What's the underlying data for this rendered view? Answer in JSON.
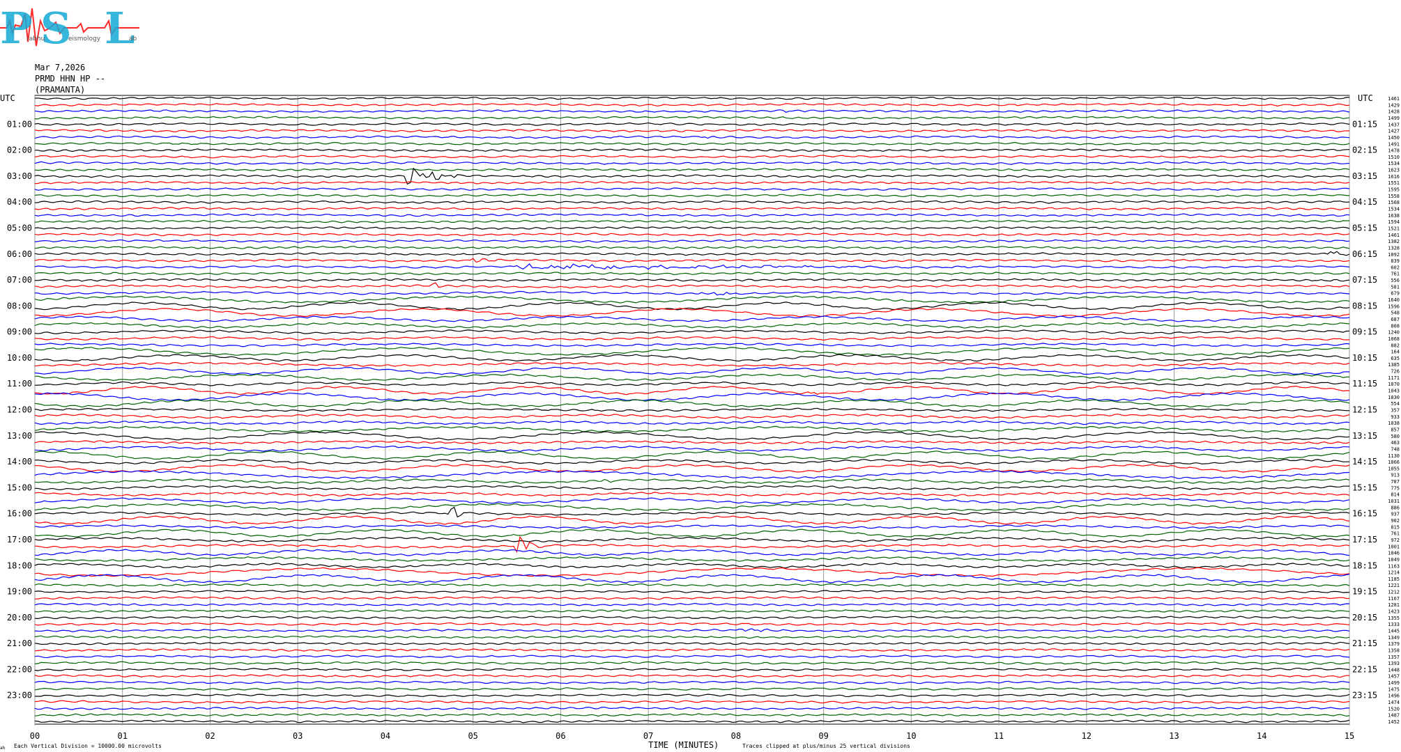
{
  "logo": {
    "letters": [
      "P",
      "S",
      "L"
    ],
    "small_text": [
      "rabhu",
      "eismology",
      "ab"
    ]
  },
  "header": {
    "date": "Mar 7,2026",
    "station": "PRMD HHN HP --",
    "site": "(PRAMANTA)"
  },
  "chart_data": {
    "type": "line",
    "title": "",
    "xlabel": "TIME (MINUTES)",
    "ylabel": "UTC",
    "xlim": [
      0,
      15
    ],
    "x_ticks": [
      "00",
      "01",
      "02",
      "03",
      "04",
      "05",
      "06",
      "07",
      "08",
      "09",
      "10",
      "11",
      "12",
      "13",
      "14",
      "15"
    ],
    "left_hour_labels": [
      "01:00",
      "02:00",
      "03:00",
      "04:00",
      "05:00",
      "06:00",
      "07:00",
      "08:00",
      "09:00",
      "10:00",
      "11:00",
      "12:00",
      "13:00",
      "14:00",
      "15:00",
      "16:00",
      "17:00",
      "18:00",
      "19:00",
      "20:00",
      "21:00",
      "22:00",
      "23:00"
    ],
    "right_hour_labels": [
      "01:15",
      "02:15",
      "03:15",
      "04:15",
      "05:15",
      "06:15",
      "07:15",
      "08:15",
      "09:15",
      "10:15",
      "11:15",
      "12:15",
      "13:15",
      "14:15",
      "15:15",
      "16:15",
      "17:15",
      "18:15",
      "19:15",
      "20:15",
      "21:15",
      "22:15",
      "23:15"
    ],
    "trace_colors": [
      "#000000",
      "#ff0000",
      "#0000ff",
      "#006400"
    ],
    "trace_values": [
      1461,
      1429,
      1428,
      1499,
      1437,
      1427,
      1450,
      1491,
      1478,
      1510,
      1534,
      1623,
      1616,
      1551,
      1595,
      1558,
      1568,
      1534,
      1638,
      1594,
      1521,
      1461,
      1382,
      1328,
      1092,
      839,
      602,
      761,
      556,
      581,
      679,
      1640,
      1596,
      548,
      687,
      808,
      1240,
      1068,
      882,
      164,
      635,
      1385,
      726,
      1171,
      1070,
      1043,
      1030,
      554,
      357,
      933,
      1038,
      857,
      580,
      463,
      748,
      1130,
      1066,
      1055,
      913,
      787,
      775,
      814,
      1031,
      886,
      937,
      902,
      815,
      761,
      972,
      1001,
      1046,
      1049,
      1163,
      1214,
      1185,
      1221,
      1212,
      1167,
      1281,
      1423,
      1355,
      1333,
      1445,
      1349,
      1379,
      1358,
      1357,
      1393,
      1448,
      1457,
      1499,
      1475,
      1496,
      1474,
      1520,
      1487,
      1452
    ],
    "event_annotations": [
      {
        "trace": 2,
        "minute": 8.5,
        "amp": 1.0,
        "len": 0.3
      },
      {
        "trace": 6,
        "minute": 7.6,
        "amp": 1.0,
        "len": 0.4
      },
      {
        "trace": 12,
        "minute": 4.25,
        "amp": 6.0,
        "len": 0.6
      },
      {
        "trace": 24,
        "minute": 14.8,
        "amp": 2.0,
        "len": 0.2
      },
      {
        "trace": 25,
        "minute": 5.0,
        "amp": 2.0,
        "len": 0.3
      },
      {
        "trace": 26,
        "minute": 5.5,
        "amp": 1.6,
        "len": 5.8
      },
      {
        "trace": 29,
        "minute": 4.5,
        "amp": 3.0,
        "len": 0.15
      },
      {
        "trace": 30,
        "minute": 7.6,
        "amp": 1.2,
        "len": 1.2
      },
      {
        "trace": 45,
        "minute": 8.8,
        "amp": 1.5,
        "len": 0.3
      },
      {
        "trace": 59,
        "minute": 6.5,
        "amp": 2.5,
        "len": 0.2
      },
      {
        "trace": 64,
        "minute": 4.7,
        "amp": 6.0,
        "len": 0.25
      },
      {
        "trace": 69,
        "minute": 5.5,
        "amp": 7.0,
        "len": 0.3
      },
      {
        "trace": 82,
        "minute": 8.0,
        "amp": 2.5,
        "len": 0.4
      }
    ],
    "footer_left": "Each Vertical Division = 10000.00 microvolts",
    "footer_right": "Traces clipped at plus/minus 25 vertical divisions",
    "corner_label": "ah"
  }
}
